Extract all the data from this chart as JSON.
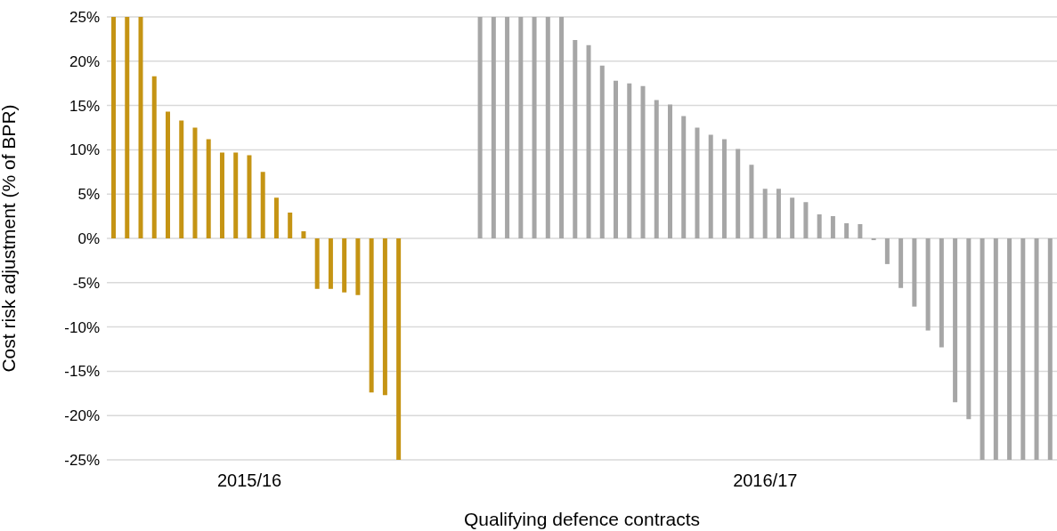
{
  "chart_data": {
    "type": "bar",
    "xlabel": "Qualifying defence contracts",
    "ylabel": "Cost risk adjustment  (% of BPR)",
    "categories": [
      null,
      null,
      null,
      null,
      null,
      null,
      null,
      null,
      null,
      null,
      "2015/16",
      null,
      null,
      null,
      null,
      null,
      null,
      null,
      null,
      null,
      null,
      null,
      null,
      null,
      null,
      null,
      null,
      null,
      null,
      null,
      null,
      null,
      null,
      null,
      null,
      null,
      null,
      null,
      null,
      null,
      null,
      null,
      null,
      null,
      null,
      null,
      null,
      null,
      "2016/17",
      null,
      null,
      null,
      null,
      null,
      null,
      null,
      null,
      null,
      null,
      null,
      null,
      null,
      null,
      null,
      null,
      null,
      null,
      null,
      null,
      null
    ],
    "values": [
      25,
      25,
      25,
      18.3,
      14.3,
      13.3,
      12.5,
      11.2,
      9.7,
      9.7,
      9.4,
      7.5,
      4.6,
      2.9,
      0.8,
      -5.7,
      -5.7,
      -6.1,
      -6.4,
      -17.4,
      -17.7,
      -25,
      null,
      null,
      null,
      null,
      null,
      25,
      25,
      25,
      25,
      25,
      25,
      25,
      22.4,
      21.8,
      19.5,
      17.8,
      17.5,
      17.2,
      15.6,
      15.1,
      13.8,
      12.5,
      11.7,
      11.2,
      10.1,
      8.3,
      5.6,
      5.6,
      4.6,
      4.1,
      2.7,
      2.5,
      1.7,
      1.6,
      -0.2,
      -2.9,
      -5.6,
      -7.7,
      -10.4,
      -12.3,
      -18.5,
      -20.4,
      -25,
      -25,
      -25,
      -25,
      -25,
      -25
    ],
    "colors": [
      "#c59414",
      "#c59414",
      "#c59414",
      "#c59414",
      "#c59414",
      "#c59414",
      "#c59414",
      "#c59414",
      "#c59414",
      "#c59414",
      "#c59414",
      "#c59414",
      "#c59414",
      "#c59414",
      "#c59414",
      "#c59414",
      "#c59414",
      "#c59414",
      "#c59414",
      "#c59414",
      "#c59414",
      "#c59414",
      null,
      null,
      null,
      null,
      null,
      "#a6a6a6",
      "#a6a6a6",
      "#a6a6a6",
      "#a6a6a6",
      "#a6a6a6",
      "#a6a6a6",
      "#a6a6a6",
      "#a6a6a6",
      "#a6a6a6",
      "#a6a6a6",
      "#a6a6a6",
      "#a6a6a6",
      "#a6a6a6",
      "#a6a6a6",
      "#a6a6a6",
      "#a6a6a6",
      "#a6a6a6",
      "#a6a6a6",
      "#a6a6a6",
      "#a6a6a6",
      "#a6a6a6",
      "#a6a6a6",
      "#a6a6a6",
      "#a6a6a6",
      "#a6a6a6",
      "#a6a6a6",
      "#a6a6a6",
      "#a6a6a6",
      "#a6a6a6",
      "#a6a6a6",
      "#a6a6a6",
      "#a6a6a6",
      "#a6a6a6",
      "#a6a6a6",
      "#a6a6a6",
      "#a6a6a6",
      "#a6a6a6",
      "#a6a6a6",
      "#a6a6a6",
      "#a6a6a6",
      "#a6a6a6",
      "#a6a6a6",
      "#a6a6a6"
    ],
    "ylim": [
      -25,
      25
    ],
    "yticks": [
      {
        "value": -25,
        "label": "-25%"
      },
      {
        "value": -20,
        "label": "-20%"
      },
      {
        "value": -15,
        "label": "-15%"
      },
      {
        "value": -10,
        "label": "-10%"
      },
      {
        "value": -5,
        "label": "-5%"
      },
      {
        "value": 0,
        "label": "0%"
      },
      {
        "value": 5,
        "label": "5%"
      },
      {
        "value": 10,
        "label": "10%"
      },
      {
        "value": 15,
        "label": "15%"
      },
      {
        "value": 20,
        "label": "20%"
      },
      {
        "value": 25,
        "label": "25%"
      }
    ],
    "grid": "y",
    "legend": false
  }
}
